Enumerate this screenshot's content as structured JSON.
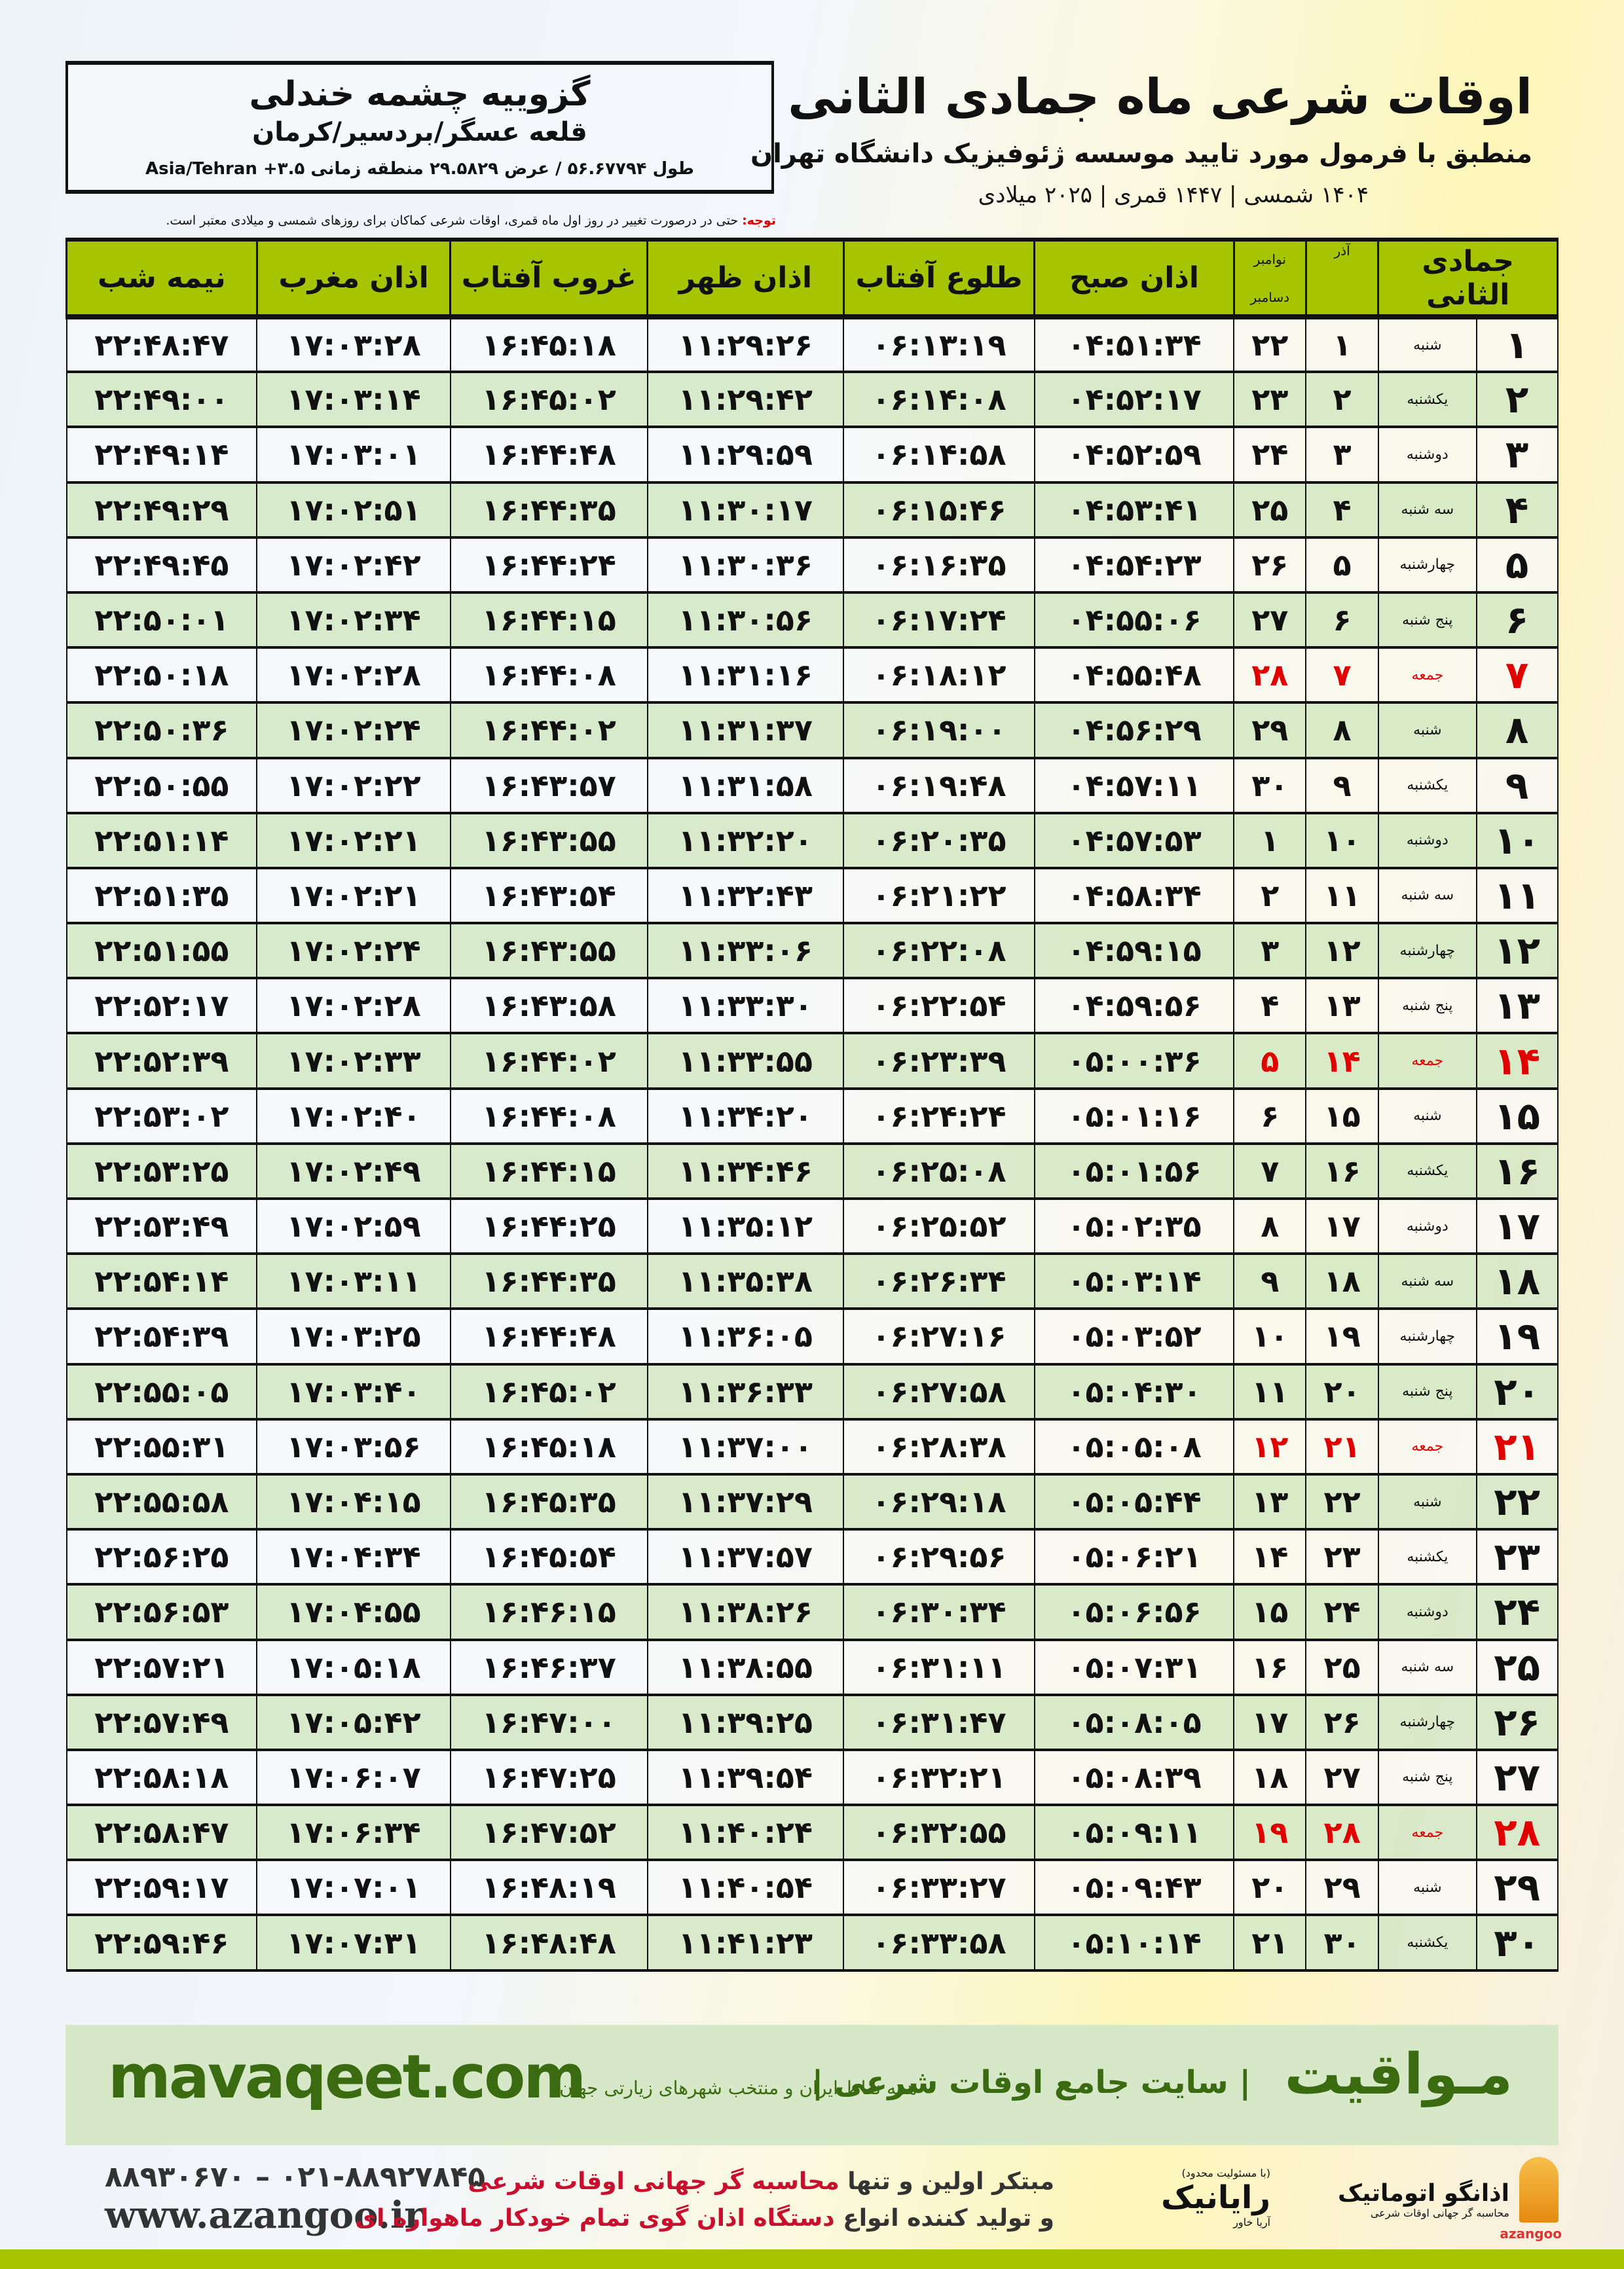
{
  "header": {
    "title": "اوقات شرعی ماه جمادی الثانی",
    "subtitle": "منطبق با فرمول مورد تایید موسسه ژئوفیزیک دانشگاه تهران",
    "dates": "۱۴۰۴ شمسی | ۱۴۴۷ قمری | ۲۰۲۵ میلادی"
  },
  "location": {
    "name": "گزوییه چشمه خندلی",
    "path": "قلعه عسگر/بردسیر/کرمان",
    "coords": "طول ۵۶.۶۷۷۹۴ / عرض ۲۹.۵۸۲۹ منطقه زمانی ۳.۵+ Asia/Tehran"
  },
  "note": {
    "label": "توجه:",
    "text": " حتی در درصورت تغییر در روز اول ماه قمری، اوقات شرعی کماکان برای روزهای شمسی و میلادی معتبر است."
  },
  "columns": {
    "hijri": "جمادی الثانی",
    "azar": "آذر",
    "greg_top": "نوامبر",
    "greg_bottom": "دسامبر",
    "sobh": "اذان صبح",
    "tolu": "طلوع آفتاب",
    "zohr": "اذان ظهر",
    "ghorub": "غروب آفتاب",
    "maghrib": "اذان مغرب",
    "nime": "نیمه شب"
  },
  "colors": {
    "header": "#a6c400",
    "row_alt": "#d6e8c8",
    "friday": "#e10000",
    "brand": "#3a6b10"
  },
  "rows": [
    [
      "۱",
      "شنبه",
      "۱",
      "۲۲",
      "۰۴:۵۱:۳۴",
      "۰۶:۱۳:۱۹",
      "۱۱:۲۹:۲۶",
      "۱۶:۴۵:۱۸",
      "۱۷:۰۳:۲۸",
      "۲۲:۴۸:۴۷"
    ],
    [
      "۲",
      "یکشنبه",
      "۲",
      "۲۳",
      "۰۴:۵۲:۱۷",
      "۰۶:۱۴:۰۸",
      "۱۱:۲۹:۴۲",
      "۱۶:۴۵:۰۲",
      "۱۷:۰۳:۱۴",
      "۲۲:۴۹:۰۰"
    ],
    [
      "۳",
      "دوشنبه",
      "۳",
      "۲۴",
      "۰۴:۵۲:۵۹",
      "۰۶:۱۴:۵۸",
      "۱۱:۲۹:۵۹",
      "۱۶:۴۴:۴۸",
      "۱۷:۰۳:۰۱",
      "۲۲:۴۹:۱۴"
    ],
    [
      "۴",
      "سه شنبه",
      "۴",
      "۲۵",
      "۰۴:۵۳:۴۱",
      "۰۶:۱۵:۴۶",
      "۱۱:۳۰:۱۷",
      "۱۶:۴۴:۳۵",
      "۱۷:۰۲:۵۱",
      "۲۲:۴۹:۲۹"
    ],
    [
      "۵",
      "چهارشنبه",
      "۵",
      "۲۶",
      "۰۴:۵۴:۲۳",
      "۰۶:۱۶:۳۵",
      "۱۱:۳۰:۳۶",
      "۱۶:۴۴:۲۴",
      "۱۷:۰۲:۴۲",
      "۲۲:۴۹:۴۵"
    ],
    [
      "۶",
      "پنج شنبه",
      "۶",
      "۲۷",
      "۰۴:۵۵:۰۶",
      "۰۶:۱۷:۲۴",
      "۱۱:۳۰:۵۶",
      "۱۶:۴۴:۱۵",
      "۱۷:۰۲:۳۴",
      "۲۲:۵۰:۰۱"
    ],
    [
      "۷",
      "جمعه",
      "۷",
      "۲۸",
      "۰۴:۵۵:۴۸",
      "۰۶:۱۸:۱۲",
      "۱۱:۳۱:۱۶",
      "۱۶:۴۴:۰۸",
      "۱۷:۰۲:۲۸",
      "۲۲:۵۰:۱۸"
    ],
    [
      "۸",
      "شنبه",
      "۸",
      "۲۹",
      "۰۴:۵۶:۲۹",
      "۰۶:۱۹:۰۰",
      "۱۱:۳۱:۳۷",
      "۱۶:۴۴:۰۲",
      "۱۷:۰۲:۲۴",
      "۲۲:۵۰:۳۶"
    ],
    [
      "۹",
      "یکشنبه",
      "۹",
      "۳۰",
      "۰۴:۵۷:۱۱",
      "۰۶:۱۹:۴۸",
      "۱۱:۳۱:۵۸",
      "۱۶:۴۳:۵۷",
      "۱۷:۰۲:۲۲",
      "۲۲:۵۰:۵۵"
    ],
    [
      "۱۰",
      "دوشنبه",
      "۱۰",
      "۱",
      "۰۴:۵۷:۵۳",
      "۰۶:۲۰:۳۵",
      "۱۱:۳۲:۲۰",
      "۱۶:۴۳:۵۵",
      "۱۷:۰۲:۲۱",
      "۲۲:۵۱:۱۴"
    ],
    [
      "۱۱",
      "سه شنبه",
      "۱۱",
      "۲",
      "۰۴:۵۸:۳۴",
      "۰۶:۲۱:۲۲",
      "۱۱:۳۲:۴۳",
      "۱۶:۴۳:۵۴",
      "۱۷:۰۲:۲۱",
      "۲۲:۵۱:۳۵"
    ],
    [
      "۱۲",
      "چهارشنبه",
      "۱۲",
      "۳",
      "۰۴:۵۹:۱۵",
      "۰۶:۲۲:۰۸",
      "۱۱:۳۳:۰۶",
      "۱۶:۴۳:۵۵",
      "۱۷:۰۲:۲۴",
      "۲۲:۵۱:۵۵"
    ],
    [
      "۱۳",
      "پنج شنبه",
      "۱۳",
      "۴",
      "۰۴:۵۹:۵۶",
      "۰۶:۲۲:۵۴",
      "۱۱:۳۳:۳۰",
      "۱۶:۴۳:۵۸",
      "۱۷:۰۲:۲۸",
      "۲۲:۵۲:۱۷"
    ],
    [
      "۱۴",
      "جمعه",
      "۱۴",
      "۵",
      "۰۵:۰۰:۳۶",
      "۰۶:۲۳:۳۹",
      "۱۱:۳۳:۵۵",
      "۱۶:۴۴:۰۲",
      "۱۷:۰۲:۳۳",
      "۲۲:۵۲:۳۹"
    ],
    [
      "۱۵",
      "شنبه",
      "۱۵",
      "۶",
      "۰۵:۰۱:۱۶",
      "۰۶:۲۴:۲۴",
      "۱۱:۳۴:۲۰",
      "۱۶:۴۴:۰۸",
      "۱۷:۰۲:۴۰",
      "۲۲:۵۳:۰۲"
    ],
    [
      "۱۶",
      "یکشنبه",
      "۱۶",
      "۷",
      "۰۵:۰۱:۵۶",
      "۰۶:۲۵:۰۸",
      "۱۱:۳۴:۴۶",
      "۱۶:۴۴:۱۵",
      "۱۷:۰۲:۴۹",
      "۲۲:۵۳:۲۵"
    ],
    [
      "۱۷",
      "دوشنبه",
      "۱۷",
      "۸",
      "۰۵:۰۲:۳۵",
      "۰۶:۲۵:۵۲",
      "۱۱:۳۵:۱۲",
      "۱۶:۴۴:۲۵",
      "۱۷:۰۲:۵۹",
      "۲۲:۵۳:۴۹"
    ],
    [
      "۱۸",
      "سه شنبه",
      "۱۸",
      "۹",
      "۰۵:۰۳:۱۴",
      "۰۶:۲۶:۳۴",
      "۱۱:۳۵:۳۸",
      "۱۶:۴۴:۳۵",
      "۱۷:۰۳:۱۱",
      "۲۲:۵۴:۱۴"
    ],
    [
      "۱۹",
      "چهارشنبه",
      "۱۹",
      "۱۰",
      "۰۵:۰۳:۵۲",
      "۰۶:۲۷:۱۶",
      "۱۱:۳۶:۰۵",
      "۱۶:۴۴:۴۸",
      "۱۷:۰۳:۲۵",
      "۲۲:۵۴:۳۹"
    ],
    [
      "۲۰",
      "پنج شنبه",
      "۲۰",
      "۱۱",
      "۰۵:۰۴:۳۰",
      "۰۶:۲۷:۵۸",
      "۱۱:۳۶:۳۳",
      "۱۶:۴۵:۰۲",
      "۱۷:۰۳:۴۰",
      "۲۲:۵۵:۰۵"
    ],
    [
      "۲۱",
      "جمعه",
      "۲۱",
      "۱۲",
      "۰۵:۰۵:۰۸",
      "۰۶:۲۸:۳۸",
      "۱۱:۳۷:۰۰",
      "۱۶:۴۵:۱۸",
      "۱۷:۰۳:۵۶",
      "۲۲:۵۵:۳۱"
    ],
    [
      "۲۲",
      "شنبه",
      "۲۲",
      "۱۳",
      "۰۵:۰۵:۴۴",
      "۰۶:۲۹:۱۸",
      "۱۱:۳۷:۲۹",
      "۱۶:۴۵:۳۵",
      "۱۷:۰۴:۱۵",
      "۲۲:۵۵:۵۸"
    ],
    [
      "۲۳",
      "یکشنبه",
      "۲۳",
      "۱۴",
      "۰۵:۰۶:۲۱",
      "۰۶:۲۹:۵۶",
      "۱۱:۳۷:۵۷",
      "۱۶:۴۵:۵۴",
      "۱۷:۰۴:۳۴",
      "۲۲:۵۶:۲۵"
    ],
    [
      "۲۴",
      "دوشنبه",
      "۲۴",
      "۱۵",
      "۰۵:۰۶:۵۶",
      "۰۶:۳۰:۳۴",
      "۱۱:۳۸:۲۶",
      "۱۶:۴۶:۱۵",
      "۱۷:۰۴:۵۵",
      "۲۲:۵۶:۵۳"
    ],
    [
      "۲۵",
      "سه شنبه",
      "۲۵",
      "۱۶",
      "۰۵:۰۷:۳۱",
      "۰۶:۳۱:۱۱",
      "۱۱:۳۸:۵۵",
      "۱۶:۴۶:۳۷",
      "۱۷:۰۵:۱۸",
      "۲۲:۵۷:۲۱"
    ],
    [
      "۲۶",
      "چهارشنبه",
      "۲۶",
      "۱۷",
      "۰۵:۰۸:۰۵",
      "۰۶:۳۱:۴۷",
      "۱۱:۳۹:۲۵",
      "۱۶:۴۷:۰۰",
      "۱۷:۰۵:۴۲",
      "۲۲:۵۷:۴۹"
    ],
    [
      "۲۷",
      "پنج شنبه",
      "۲۷",
      "۱۸",
      "۰۵:۰۸:۳۹",
      "۰۶:۳۲:۲۱",
      "۱۱:۳۹:۵۴",
      "۱۶:۴۷:۲۵",
      "۱۷:۰۶:۰۷",
      "۲۲:۵۸:۱۸"
    ],
    [
      "۲۸",
      "جمعه",
      "۲۸",
      "۱۹",
      "۰۵:۰۹:۱۱",
      "۰۶:۳۲:۵۵",
      "۱۱:۴۰:۲۴",
      "۱۶:۴۷:۵۲",
      "۱۷:۰۶:۳۴",
      "۲۲:۵۸:۴۷"
    ],
    [
      "۲۹",
      "شنبه",
      "۲۹",
      "۲۰",
      "۰۵:۰۹:۴۳",
      "۰۶:۳۳:۲۷",
      "۱۱:۴۰:۵۴",
      "۱۶:۴۸:۱۹",
      "۱۷:۰۷:۰۱",
      "۲۲:۵۹:۱۷"
    ],
    [
      "۳۰",
      "یکشنبه",
      "۳۰",
      "۲۱",
      "۰۵:۱۰:۱۴",
      "۰۶:۳۳:۵۸",
      "۱۱:۴۱:۲۳",
      "۱۶:۴۸:۴۸",
      "۱۷:۰۷:۳۱",
      "۲۲:۵۹:۴۶"
    ]
  ],
  "promo": {
    "brand": "مـواقیت",
    "tagline": "| سایت جامع اوقات شرعی |",
    "sub": "همه نقاط ایران و منتخب شهرهای زیارتی جهان",
    "url": "mavaqeet.com"
  },
  "footer": {
    "phone": "۰۲۱-۸۸۹۲۷۸۴۵ – ۸۸۹۳۰۶۷۰",
    "web": "www.azangoo.ir",
    "slogan1_a": "مبتکر اولین و تنها ",
    "slogan1_b": "محاسبه گر جهانی اوقات شرعی",
    "slogan2_a": "و تولید کننده انواع ",
    "slogan2_b": "دستگاه اذان گوی تمام خودکار ماهواره ای",
    "rayanik_note": "(با مسئولیت محدود)",
    "rayanik_small": "آریا خاور",
    "rayanik": "رایانیک",
    "azangoo_logo": "اذانگو اتوماتیک",
    "azangoo_sub": "محاسبه گر جهانی اوقات شرعی",
    "azangoo_en": "azangoo"
  }
}
